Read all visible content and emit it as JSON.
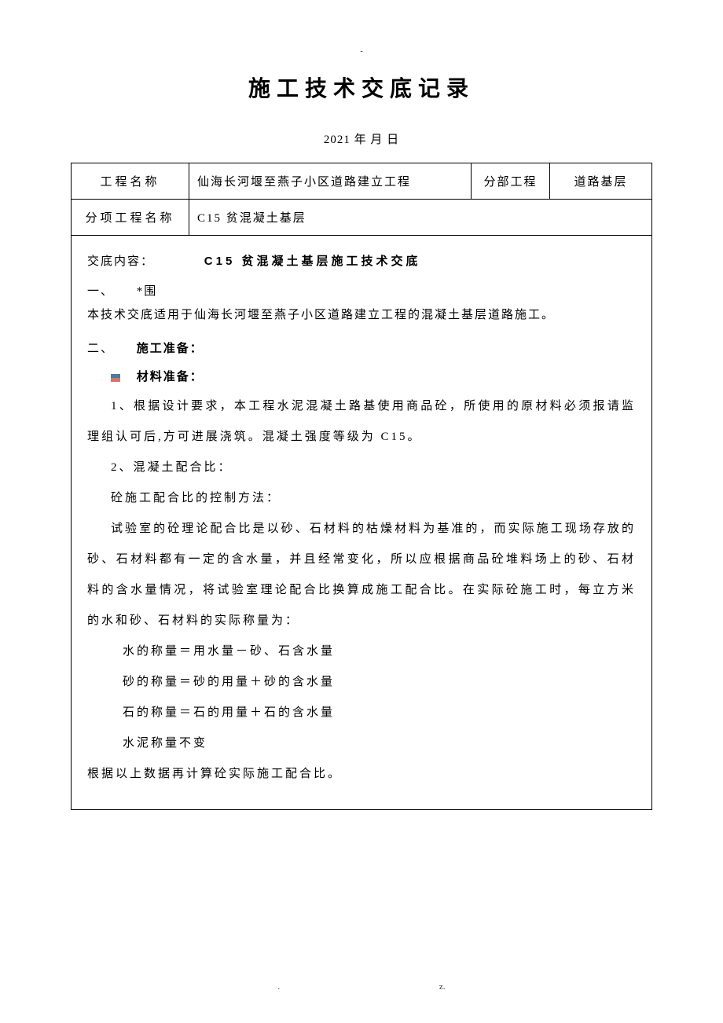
{
  "top_marker": "-",
  "title": "施工技术交底记录",
  "date": "2021 年 月 日",
  "header": {
    "project_name_label": "工程名称",
    "project_name_value": "仙海长河堰至燕子小区道路建立工程",
    "section_label": "分部工程",
    "section_value": "道路基层",
    "subitem_label": "分项工程名称",
    "subitem_value": "C15 贫混凝土基层"
  },
  "content": {
    "header_label": "交底内容：",
    "header_title": "C15 贫混凝土基层施工技术交底",
    "section1_num": "一、",
    "section1_label": "*围",
    "section1_text": "本技术交底适用于仙海长河堰至燕子小区道路建立工程的混凝土基层道路施工。",
    "section2_num": "二、",
    "section2_label": "施工准备：",
    "bullet1": "材料准备：",
    "para1": "1、根据设计要求，本工程水泥混凝土路基使用商品砼，所使用的原材料必须报请监理组认可后,方可进展浇筑。混凝土强度等级为 C15。",
    "para2_title": "2、混凝土配合比：",
    "para3": "砼施工配合比的控制方法：",
    "para4": "试验室的砼理论配合比是以砂、石材料的枯燥材料为基准的，而实际施工现场存放的砂、石材料都有一定的含水量，并且经常变化，所以应根据商品砼堆料场上的砂、石材料的含水量情况，将试验室理论配合比换算成施工配合比。在实际砼施工时，每立方米的水和砂、石材料的实际称量为：",
    "formula1": "水的称量＝用水量－砂、石含水量",
    "formula2": "砂的称量＝砂的用量＋砂的含水量",
    "formula3": "石的称量＝石的用量＋石的含水量",
    "formula4": "水泥称量不变",
    "para5": "根据以上数据再计算砼实际施工配合比。"
  },
  "footer": {
    "left": ".",
    "right": "z."
  }
}
